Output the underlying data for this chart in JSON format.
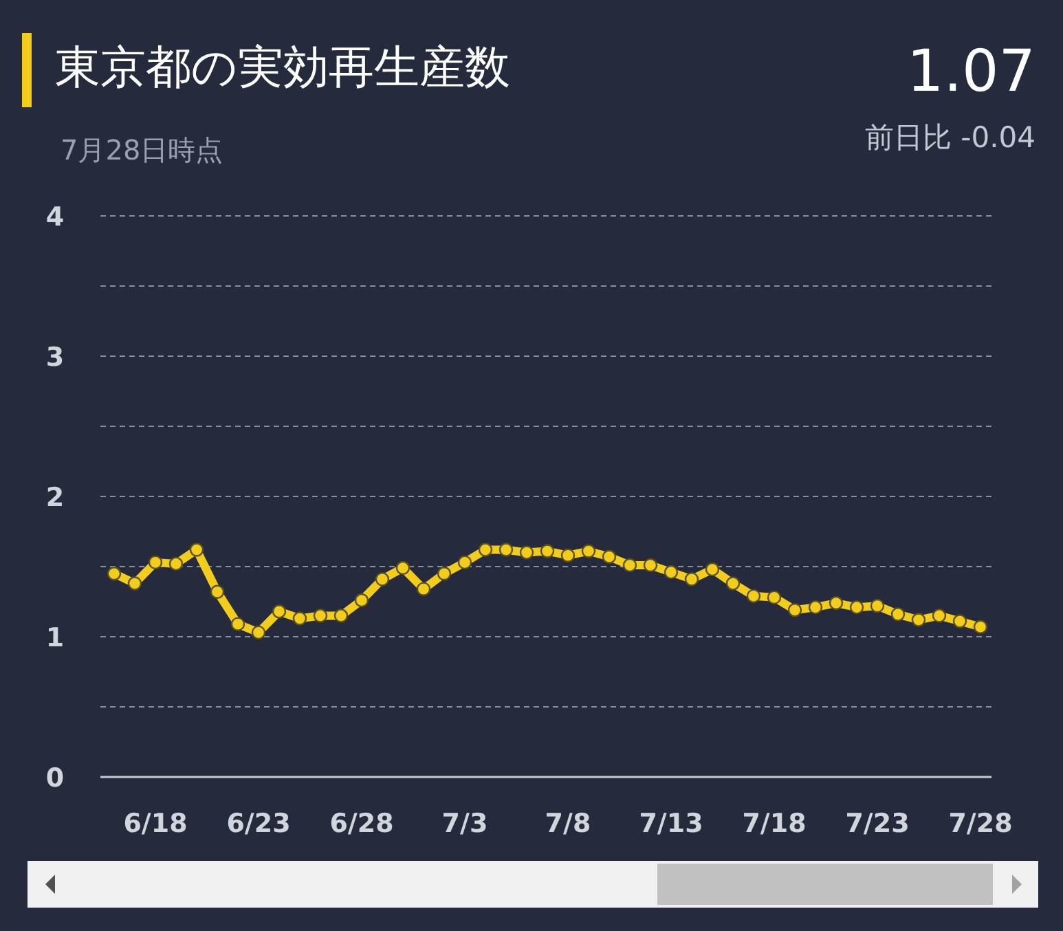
{
  "chart_data": {
    "type": "line",
    "title": "東京都の実効再生産数",
    "subtitle": "7月28日時点",
    "annotations": [
      "1.07",
      "前日比 -0.04"
    ],
    "categories": [
      null,
      null,
      "6/18",
      null,
      null,
      null,
      null,
      "6/23",
      null,
      null,
      null,
      null,
      "6/28",
      null,
      null,
      null,
      null,
      "7/3",
      null,
      null,
      null,
      null,
      "7/8",
      null,
      null,
      null,
      null,
      "7/13",
      null,
      null,
      null,
      null,
      "7/18",
      null,
      null,
      null,
      null,
      "7/23",
      null,
      null,
      null,
      null,
      "7/28"
    ],
    "series": [
      {
        "color": "#f2cd1c",
        "values": [
          1.45,
          1.38,
          1.53,
          1.52,
          1.62,
          1.32,
          1.09,
          1.03,
          1.18,
          1.13,
          1.15,
          1.15,
          1.26,
          1.41,
          1.49,
          1.34,
          1.45,
          1.53,
          1.62,
          1.62,
          1.6,
          1.61,
          1.58,
          1.61,
          1.57,
          1.51,
          1.51,
          1.46,
          1.41,
          1.48,
          1.38,
          1.29,
          1.28,
          1.19,
          1.21,
          1.24,
          1.21,
          1.22,
          1.16,
          1.12,
          1.15,
          1.11,
          1.07
        ]
      }
    ],
    "ylim": [
      0,
      4
    ],
    "yticks": [
      0,
      {
        "value": 0.5,
        "label": null
      },
      1,
      {
        "value": 1.5,
        "label": null
      },
      2,
      {
        "value": 2.5,
        "label": null
      },
      3,
      {
        "value": 3.5,
        "label": null
      },
      4
    ],
    "grid": "y",
    "marker": "circle",
    "line_style": "solid"
  }
}
